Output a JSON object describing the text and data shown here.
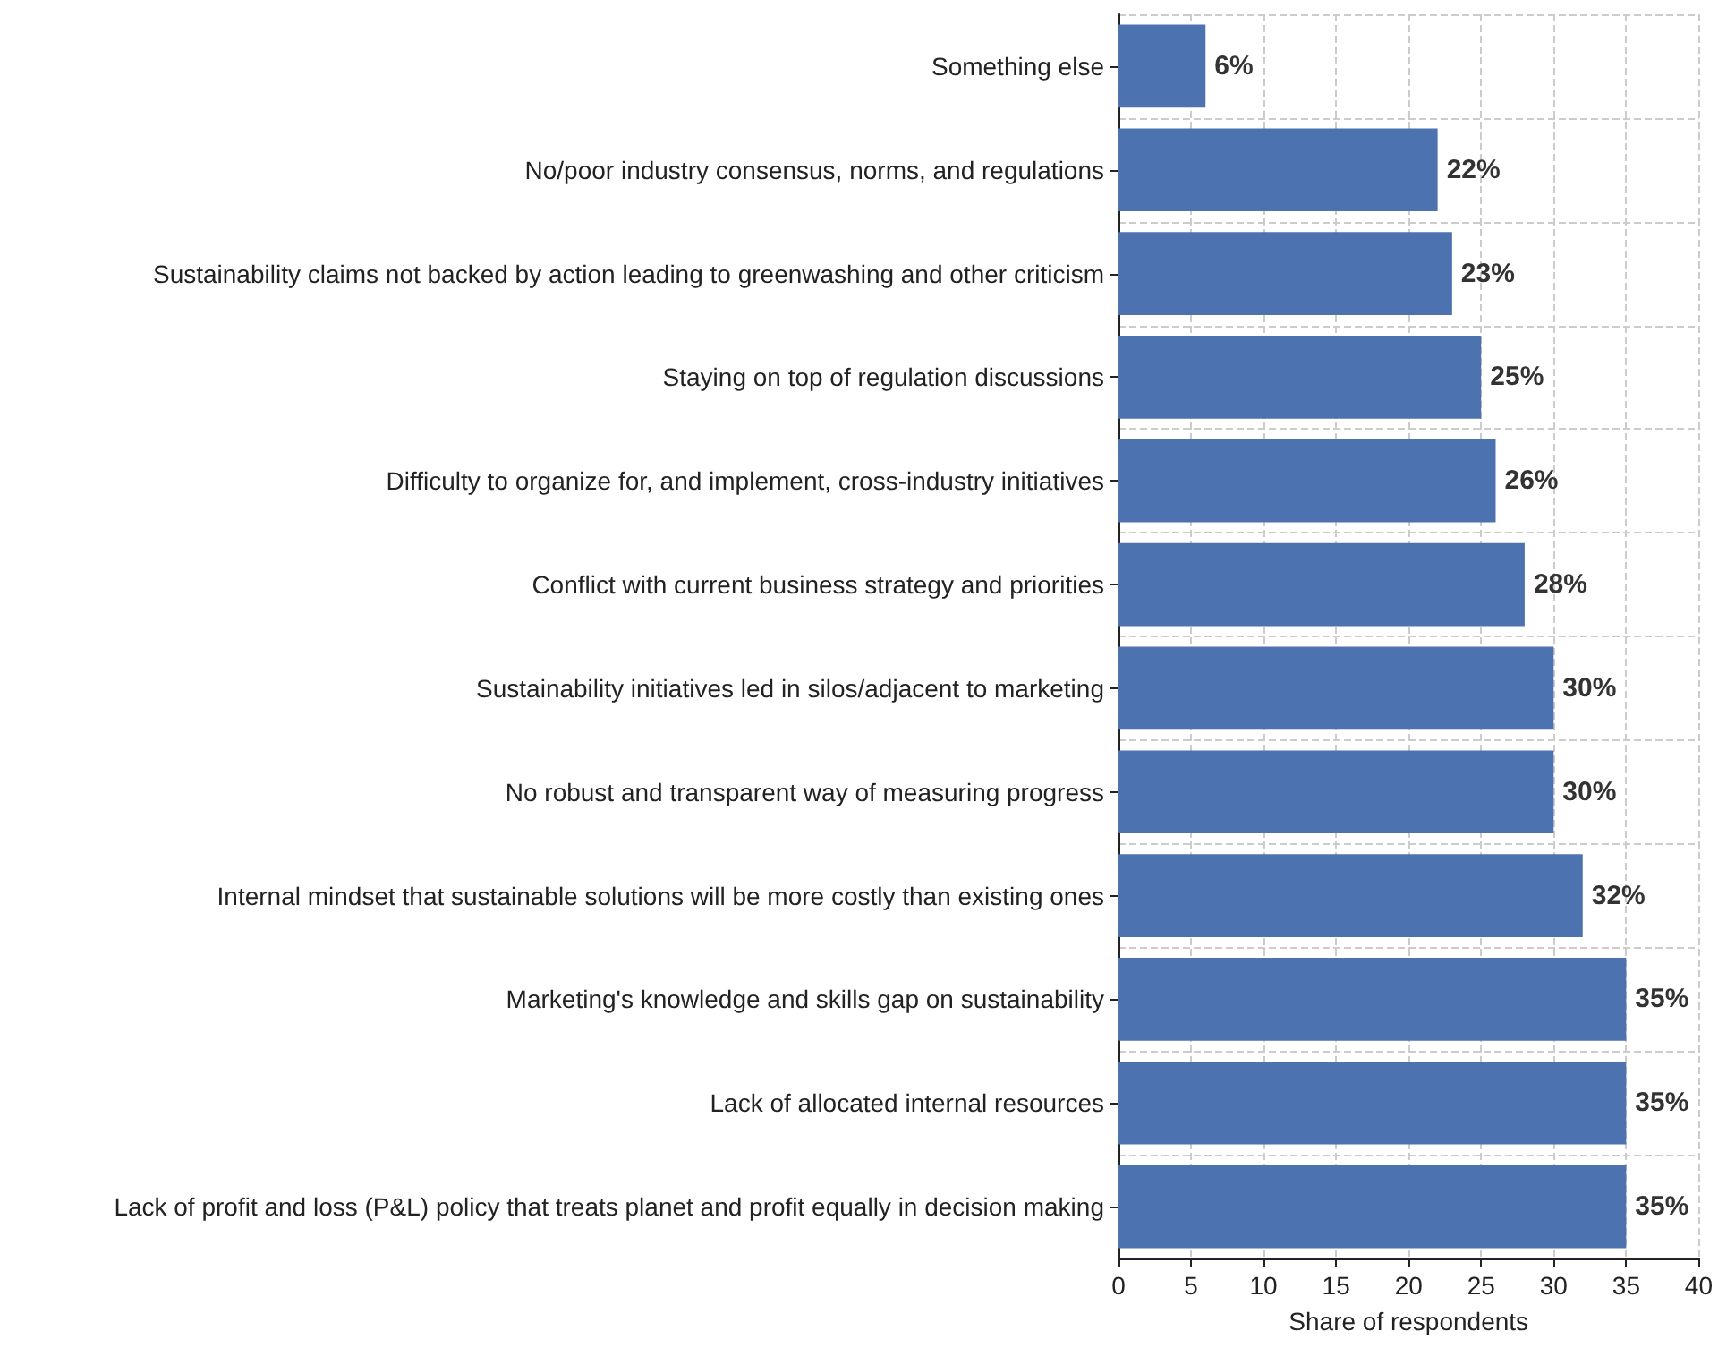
{
  "chart_data": {
    "type": "bar",
    "orientation": "horizontal",
    "xlabel": "Share of respondents",
    "categories": [
      "Something else",
      "No/poor industry consensus, norms, and regulations",
      "Sustainability claims not backed by action leading to greenwashing and other criticism",
      "Staying on top of regulation discussions",
      "Difficulty to organize for, and implement, cross-industry initiatives",
      "Conflict with current business strategy and priorities",
      "Sustainability initiatives led in silos/adjacent to marketing",
      "No robust and transparent way of measuring progress",
      "Internal mindset that sustainable solutions will be more costly than existing ones",
      "Marketing's knowledge and skills gap on sustainability",
      "Lack of allocated internal resources",
      "Lack of profit and loss (P&L) policy that treats planet and profit equally in decision making"
    ],
    "values": [
      6,
      22,
      23,
      25,
      26,
      28,
      30,
      30,
      32,
      35,
      35,
      35
    ],
    "value_labels": [
      "6%",
      "22%",
      "23%",
      "25%",
      "26%",
      "28%",
      "30%",
      "30%",
      "32%",
      "35%",
      "35%",
      "35%"
    ],
    "color": "#4c72b0",
    "xlim": [
      0,
      40
    ],
    "xticks": [
      0,
      5,
      10,
      15,
      20,
      25,
      30,
      35,
      40
    ],
    "grid": true
  }
}
